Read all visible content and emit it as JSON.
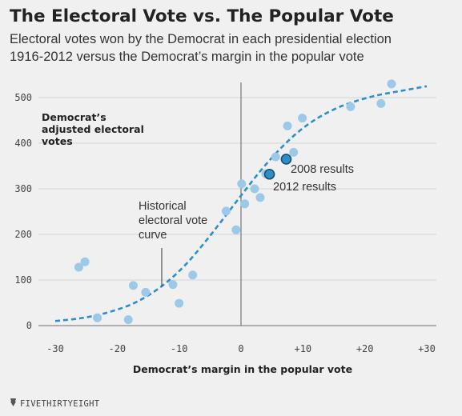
{
  "chart_data": {
    "type": "scatter",
    "title": "The Electoral Vote vs. The Popular Vote",
    "subtitle_lines": [
      "Electoral votes won by the Democrat in each presidential election",
      "1916-2012 versus the Democrat’s margin in the popular vote"
    ],
    "xlabel": "Democrat’s margin in the popular vote",
    "ylabel_lines": [
      "Democrat’s",
      "adjusted electoral",
      "votes"
    ],
    "xlim": [
      -30,
      30
    ],
    "ylim": [
      0,
      500
    ],
    "x_ticks": [
      {
        "value": -30,
        "label": "-30"
      },
      {
        "value": -20,
        "label": "-20"
      },
      {
        "value": -10,
        "label": "-10"
      },
      {
        "value": 0,
        "label": "0"
      },
      {
        "value": 10,
        "label": "+10"
      },
      {
        "value": 20,
        "label": "+20"
      },
      {
        "value": 30,
        "label": "+30"
      }
    ],
    "y_ticks": [
      {
        "value": 0,
        "label": "0"
      },
      {
        "value": 100,
        "label": "100"
      },
      {
        "value": 200,
        "label": "200"
      },
      {
        "value": 300,
        "label": "300"
      },
      {
        "value": 400,
        "label": "400"
      },
      {
        "value": 500,
        "label": "500"
      }
    ],
    "grid": true,
    "colors": {
      "points": "#9cc9e8",
      "highlight": "#2b8fc9",
      "highlight_stroke": "#1a4f6e",
      "curve": "#2b8fc9",
      "zero_line": "#777777"
    },
    "series": [
      {
        "points": [
          {
            "x": -26.2,
            "y": 128
          },
          {
            "x": -25.2,
            "y": 140
          },
          {
            "x": -23.2,
            "y": 17
          },
          {
            "x": -18.2,
            "y": 13
          },
          {
            "x": -17.4,
            "y": 88
          },
          {
            "x": -15.4,
            "y": 73
          },
          {
            "x": -11.0,
            "y": 90
          },
          {
            "x": -10.0,
            "y": 49
          },
          {
            "x": -7.8,
            "y": 111
          },
          {
            "x": -2.4,
            "y": 251
          },
          {
            "x": -0.8,
            "y": 210
          },
          {
            "x": 0.1,
            "y": 311
          },
          {
            "x": 0.6,
            "y": 267
          },
          {
            "x": 2.2,
            "y": 300
          },
          {
            "x": 3.1,
            "y": 281
          },
          {
            "x": 4.0,
            "y": 333
          },
          {
            "x": 5.6,
            "y": 370
          },
          {
            "x": 7.5,
            "y": 438
          },
          {
            "x": 8.5,
            "y": 380
          },
          {
            "x": 9.9,
            "y": 455
          },
          {
            "x": 17.7,
            "y": 480
          },
          {
            "x": 22.6,
            "y": 487
          },
          {
            "x": 24.3,
            "y": 530
          }
        ]
      }
    ],
    "highlighted": [
      {
        "x": 7.3,
        "y": 365,
        "label": "2008 results"
      },
      {
        "x": 4.6,
        "y": 332,
        "label": "2012 results"
      }
    ],
    "curve": {
      "label_lines": [
        "Historical",
        "electoral vote",
        "curve"
      ],
      "points": [
        [
          -30,
          10
        ],
        [
          -26,
          16
        ],
        [
          -22,
          27
        ],
        [
          -18,
          45
        ],
        [
          -15,
          66
        ],
        [
          -12,
          95
        ],
        [
          -9,
          133
        ],
        [
          -6,
          180
        ],
        [
          -3,
          232
        ],
        [
          0,
          285
        ],
        [
          3,
          337
        ],
        [
          6,
          383
        ],
        [
          9,
          422
        ],
        [
          12,
          452
        ],
        [
          15,
          474
        ],
        [
          18,
          490
        ],
        [
          22,
          505
        ],
        [
          26,
          515
        ],
        [
          30,
          525
        ]
      ]
    }
  },
  "footer": {
    "brand": "FIVETHIRTYEIGHT",
    "logo_icon": "fivethirtyeight-logo-icon"
  }
}
